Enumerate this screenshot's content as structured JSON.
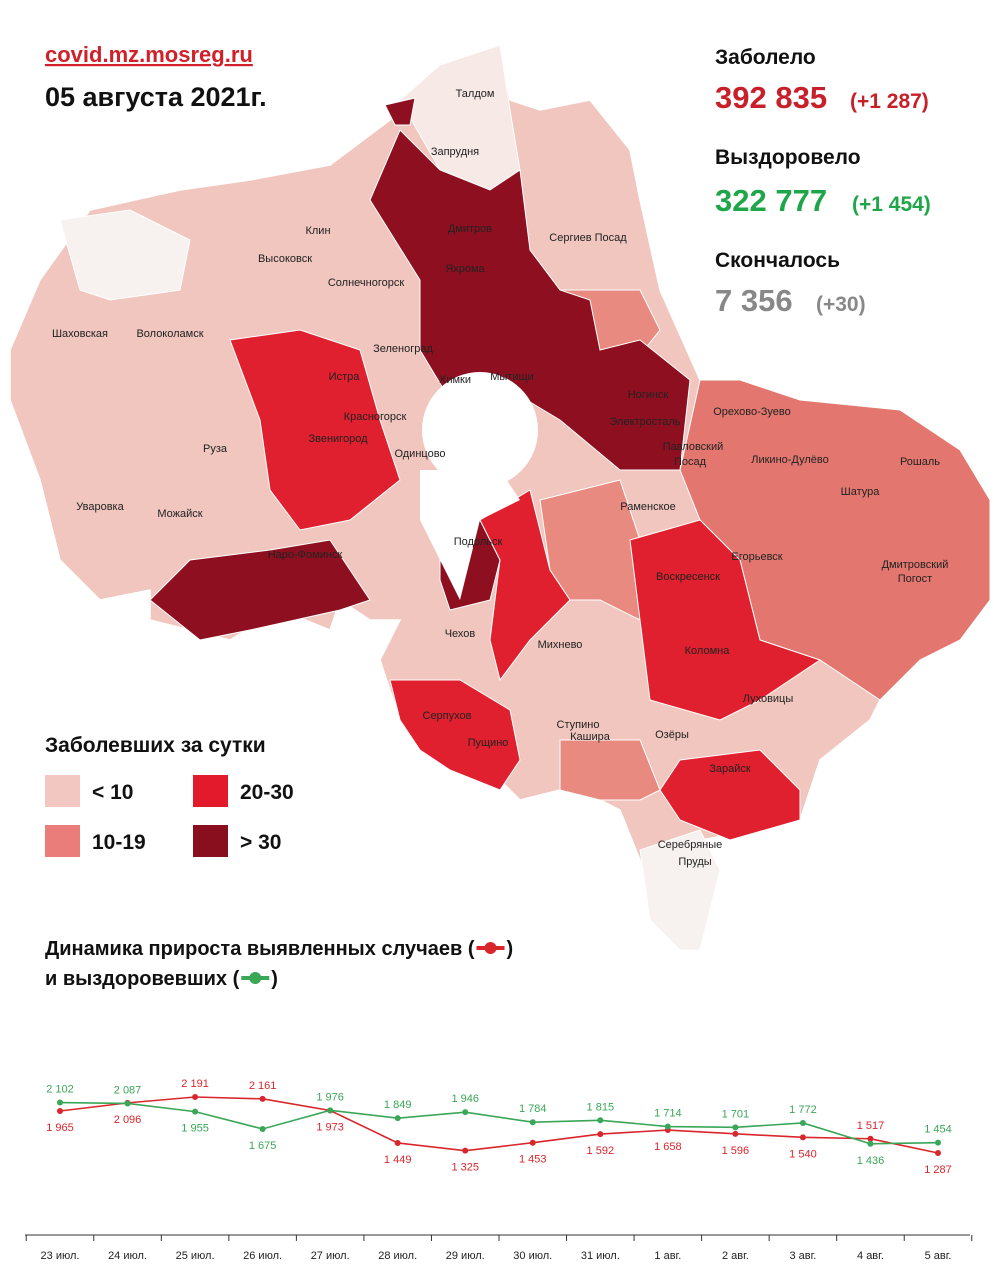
{
  "header": {
    "site": "covid.mz.mosreg.ru",
    "date": "05 августа 2021г."
  },
  "stats": [
    {
      "label": "Заболело",
      "value": "392 835",
      "delta": "(+1 287)"
    },
    {
      "label": "Выздоровело",
      "value": "322 777",
      "delta": "(+1 454)"
    },
    {
      "label": "Скончалось",
      "value": "7 356",
      "delta": "(+30)"
    }
  ],
  "legend": {
    "title": "Заболевших за сутки",
    "items": [
      {
        "label": "< 10",
        "color": "#f2c7c2"
      },
      {
        "label": "20-30",
        "color": "#e21a2c"
      },
      {
        "label": "10-19",
        "color": "#ea7d79"
      },
      {
        "label": "> 30",
        "color": "#8a0f1e"
      }
    ]
  },
  "map": {
    "towns": [
      "Талдом",
      "Запрудня",
      "Дмитров",
      "Яхрома",
      "Сергиев Посад",
      "Клин",
      "Высоковск",
      "Солнечногорск",
      "Шаховская",
      "Волоколамск",
      "Зеленоград",
      "Истра",
      "Мытищи",
      "Химки",
      "Ногинск",
      "Электросталь",
      "Красногорск",
      "Звенигород",
      "Одинцово",
      "Руза",
      "Павловский",
      "Посад",
      "Орехово-Зуево",
      "Ликино-Дулёво",
      "Рошаль",
      "Шатура",
      "Раменское",
      "Уваровка",
      "Можайск",
      "Наро-Фоминск",
      "Подольск",
      "Воскресенск",
      "Егорьевск",
      "Дмитровский",
      "Погост",
      "Чехов",
      "Михнево",
      "Коломна",
      "Серпухов",
      "Пущино",
      "Ступино",
      "Луховицы",
      "Озёры",
      "Кашира",
      "Зарайск",
      "Серебряные",
      "Пруды"
    ]
  },
  "chart_data": {
    "type": "line",
    "title": [
      "Динамика прироста выявленных случаев (",
      ")",
      "и выздоровевших (",
      ")"
    ],
    "categories": [
      "23 июл.",
      "24 июл.",
      "25 июл.",
      "26 июл.",
      "27 июл.",
      "28 июл.",
      "29 июл.",
      "30 июл.",
      "31 июл.",
      "1 авг.",
      "2 авг.",
      "3 авг.",
      "4 авг.",
      "5 авг."
    ],
    "series": [
      {
        "color": "#d9262c",
        "values": [
          1965,
          2096,
          2191,
          2161,
          1973,
          1449,
          1325,
          1453,
          1592,
          1658,
          1596,
          1540,
          1517,
          1287
        ],
        "value_labels": [
          "1 965",
          "2 096",
          "2 191",
          "2 161",
          "1 973",
          "1 449",
          "1 325",
          "1 453",
          "1 592",
          "1 658",
          "1 596",
          "1 540",
          "1 517",
          "1 287"
        ]
      },
      {
        "color": "#3aa657",
        "values": [
          2102,
          2087,
          1955,
          1675,
          1976,
          1849,
          1946,
          1784,
          1815,
          1714,
          1701,
          1772,
          1436,
          1454
        ],
        "value_labels": [
          "2 102",
          "2 087",
          "1 955",
          "1 675",
          "1 976",
          "1 849",
          "1 946",
          "1 784",
          "1 815",
          "1 714",
          "1 701",
          "1 772",
          "1 436",
          "1 454"
        ]
      }
    ]
  }
}
